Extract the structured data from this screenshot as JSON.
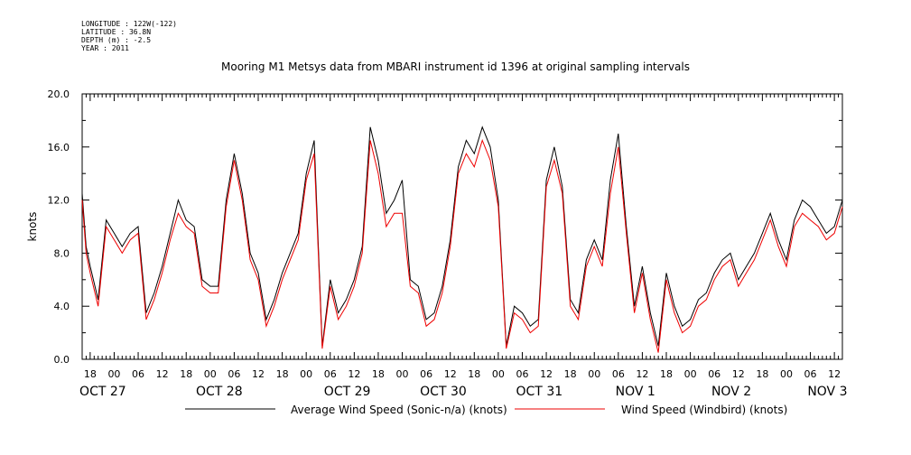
{
  "header": {
    "meta": [
      "LONGITUDE : 122W(-122)",
      "LATITUDE : 36.8N",
      "DEPTH (m) : -2.5",
      "YEAR : 2011"
    ],
    "title": "Mooring M1 Metsys data from MBARI instrument id 1396 at original sampling intervals"
  },
  "chart_data": {
    "type": "line",
    "title": "Mooring M1 Metsys data from MBARI instrument id 1396 at original sampling intervals",
    "ylabel": "knots",
    "xlabel": "",
    "ylim": [
      0,
      20
    ],
    "yticks": [
      0,
      4,
      8,
      12,
      16,
      20
    ],
    "ytick_labels": [
      "0.0",
      "4.0",
      "8.0",
      "12.0",
      "16.0",
      "20.0"
    ],
    "xlim_hours_label": "2011-10-26 16:00 to 2011-11-03 14:00",
    "x_hour_ticks": [
      "18",
      "00",
      "06",
      "12",
      "18",
      "00",
      "06",
      "12",
      "18",
      "00",
      "06",
      "12",
      "18",
      "00",
      "06",
      "12",
      "18",
      "00",
      "06",
      "12",
      "18",
      "00",
      "06",
      "12",
      "18",
      "00",
      "06",
      "12",
      "18",
      "00",
      "06",
      "12"
    ],
    "x_day_labels": [
      "OCT 27",
      "OCT 28",
      "OCT 29",
      "OCT 30",
      "OCT 31",
      "NOV  1",
      "NOV  2",
      "NOV  3"
    ],
    "x_start": "2011-10-26 16:00",
    "x_end": "2011-11-03 14:00",
    "series": [
      {
        "name": "Average Wind Speed (Sonic-n/a) (knots)",
        "color": "#000000",
        "x_hours_since_oct26_16h": [
          0,
          1,
          2,
          4,
          6,
          8,
          10,
          12,
          14,
          16,
          18,
          20,
          22,
          24,
          26,
          28,
          30,
          32,
          34,
          36,
          38,
          40,
          42,
          44,
          46,
          48,
          50,
          52,
          54,
          56,
          58,
          60,
          62,
          64,
          66,
          68,
          70,
          72,
          74,
          76,
          78,
          80,
          82,
          84,
          86,
          88,
          90,
          92,
          94,
          96,
          98,
          100,
          102,
          104,
          106,
          108,
          110,
          112,
          114,
          116,
          118,
          120,
          122,
          124,
          126,
          128,
          130,
          132,
          134,
          136,
          138,
          140,
          142,
          144,
          146,
          148,
          150,
          152,
          154,
          156,
          158,
          160,
          162,
          164,
          166,
          168,
          170,
          172,
          174,
          176,
          178,
          180,
          182,
          184,
          186,
          188,
          190
        ],
        "values": [
          12.5,
          8.5,
          7.0,
          4.5,
          10.5,
          9.5,
          8.5,
          9.5,
          10.0,
          3.5,
          5.0,
          7.0,
          9.5,
          12.0,
          10.5,
          10.0,
          6.0,
          5.5,
          5.5,
          12.0,
          15.5,
          12.5,
          8.0,
          6.5,
          3.0,
          4.5,
          6.5,
          8.0,
          9.5,
          14.0,
          16.5,
          1.0,
          6.0,
          3.5,
          4.5,
          6.0,
          8.5,
          17.5,
          15.0,
          11.0,
          12.0,
          13.5,
          6.0,
          5.5,
          3.0,
          3.5,
          5.5,
          9.0,
          14.5,
          16.5,
          15.5,
          17.5,
          16.0,
          12.0,
          1.0,
          4.0,
          3.5,
          2.5,
          3.0,
          13.5,
          16.0,
          13.0,
          4.5,
          3.5,
          7.5,
          9.0,
          7.5,
          13.5,
          17.0,
          10.0,
          4.0,
          7.0,
          3.5,
          1.0,
          6.5,
          4.0,
          2.5,
          3.0,
          4.5,
          5.0,
          6.5,
          7.5,
          8.0,
          6.0,
          7.0,
          8.0,
          9.5,
          11.0,
          9.0,
          7.5,
          10.5,
          12.0,
          11.5,
          10.5,
          9.5,
          10.0,
          12.0
        ]
      },
      {
        "name": "Wind Speed (Windbird) (knots)",
        "color": "#ee0000",
        "x_hours_since_oct26_16h": [
          0,
          1,
          2,
          4,
          6,
          8,
          10,
          12,
          14,
          16,
          18,
          20,
          22,
          24,
          26,
          28,
          30,
          32,
          34,
          36,
          38,
          40,
          42,
          44,
          46,
          48,
          50,
          52,
          54,
          56,
          58,
          60,
          62,
          64,
          66,
          68,
          70,
          72,
          74,
          76,
          78,
          80,
          82,
          84,
          86,
          88,
          90,
          92,
          94,
          96,
          98,
          100,
          102,
          104,
          106,
          108,
          110,
          112,
          114,
          116,
          118,
          120,
          122,
          124,
          126,
          128,
          130,
          132,
          134,
          136,
          138,
          140,
          142,
          144,
          146,
          148,
          150,
          152,
          154,
          156,
          158,
          160,
          162,
          164,
          166,
          168,
          170,
          172,
          174,
          176,
          178,
          180,
          182,
          184,
          186,
          188,
          190
        ],
        "values": [
          12.0,
          8.0,
          6.5,
          4.0,
          10.0,
          9.0,
          8.0,
          9.0,
          9.5,
          3.0,
          4.5,
          6.5,
          9.0,
          11.0,
          10.0,
          9.5,
          5.5,
          5.0,
          5.0,
          11.5,
          15.0,
          12.0,
          7.5,
          6.0,
          2.5,
          4.0,
          6.0,
          7.5,
          9.0,
          13.5,
          15.5,
          0.8,
          5.5,
          3.0,
          4.0,
          5.5,
          8.0,
          16.5,
          14.0,
          10.0,
          11.0,
          11.0,
          5.5,
          5.0,
          2.5,
          3.0,
          5.0,
          8.5,
          14.0,
          15.5,
          14.5,
          16.5,
          15.0,
          11.5,
          0.8,
          3.5,
          3.0,
          2.0,
          2.5,
          13.0,
          15.0,
          12.5,
          4.0,
          3.0,
          7.0,
          8.5,
          7.0,
          12.5,
          16.0,
          9.5,
          3.5,
          6.5,
          3.0,
          0.5,
          6.0,
          3.5,
          2.0,
          2.5,
          4.0,
          4.5,
          6.0,
          7.0,
          7.5,
          5.5,
          6.5,
          7.5,
          9.0,
          10.5,
          8.5,
          7.0,
          10.0,
          11.0,
          10.5,
          10.0,
          9.0,
          9.5,
          11.5
        ]
      }
    ],
    "legend_position": "bottom",
    "grid": false
  }
}
